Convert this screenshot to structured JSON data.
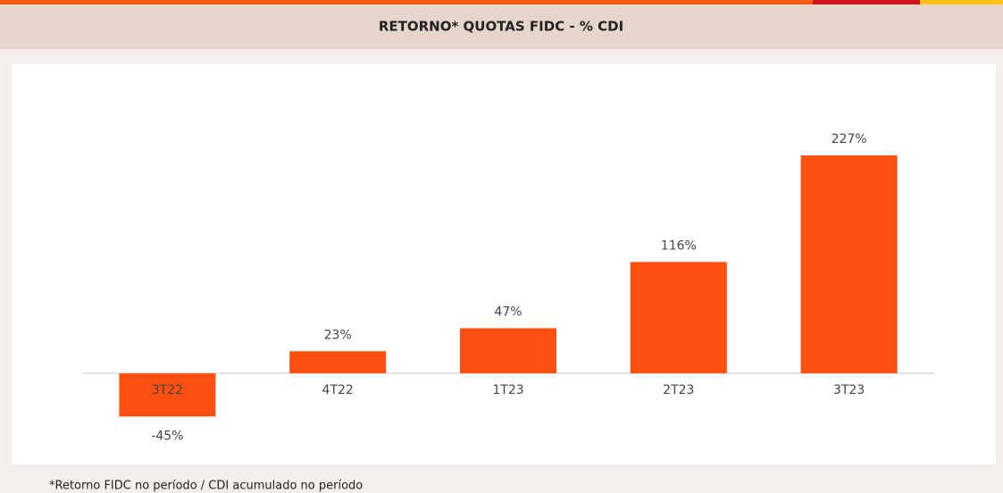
{
  "chart_data": {
    "type": "bar",
    "title": "RETORNO* QUOTAS FIDC - % CDI",
    "categories": [
      "3T22",
      "4T22",
      "1T23",
      "2T23",
      "3T23"
    ],
    "values": [
      -45,
      23,
      47,
      116,
      227
    ],
    "value_labels": [
      "-45%",
      "23%",
      "47%",
      "116%",
      "227%"
    ],
    "color": "#ff5012",
    "footnote": "*Retorno FIDC no período / CDI acumulado no período"
  }
}
